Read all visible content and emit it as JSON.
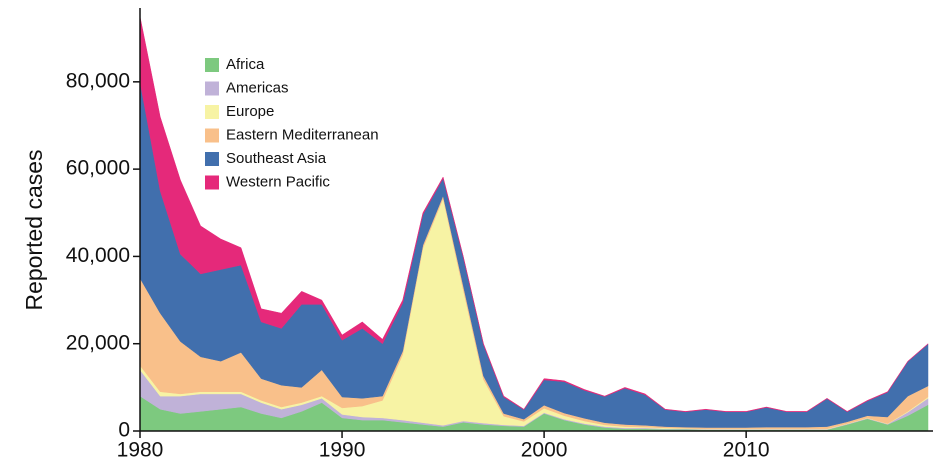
{
  "chart_data": {
    "type": "stacked_area",
    "y_label": "Reported cases",
    "x": [
      1980,
      1981,
      1982,
      1983,
      1984,
      1985,
      1986,
      1987,
      1988,
      1989,
      1990,
      1991,
      1992,
      1993,
      1994,
      1995,
      1996,
      1997,
      1998,
      1999,
      2000,
      2001,
      2002,
      2003,
      2004,
      2005,
      2006,
      2007,
      2008,
      2009,
      2010,
      2011,
      2012,
      2013,
      2014,
      2015,
      2016,
      2017,
      2018,
      2019
    ],
    "xlim": [
      1980,
      2019
    ],
    "xticks": [
      1980,
      1990,
      2000,
      2010
    ],
    "ylim": [
      0,
      96000
    ],
    "yticks": [
      0,
      {
        "value": 20000,
        "label": "20,000"
      },
      {
        "value": 40000,
        "label": "40,000"
      },
      {
        "value": 60000,
        "label": "60,000"
      },
      {
        "value": 80000,
        "label": "80,000"
      }
    ],
    "legend": "upper left",
    "series": [
      {
        "name": "Africa",
        "color": "#7dc97f",
        "values": [
          8000,
          5000,
          4000,
          4500,
          5000,
          5500,
          4000,
          3000,
          4500,
          6500,
          3000,
          2500,
          2500,
          2000,
          1500,
          1000,
          2000,
          1500,
          1200,
          1000,
          4000,
          2500,
          1500,
          800,
          500,
          500,
          400,
          400,
          300,
          300,
          300,
          300,
          300,
          300,
          300,
          1500,
          2800,
          1500,
          3500,
          6000
        ]
      },
      {
        "name": "Americas",
        "color": "#c0b2d8",
        "values": [
          6000,
          3000,
          4000,
          4000,
          3500,
          3000,
          2500,
          2000,
          1500,
          1000,
          800,
          700,
          500,
          500,
          400,
          300,
          300,
          300,
          200,
          200,
          200,
          200,
          200,
          200,
          200,
          200,
          100,
          100,
          100,
          100,
          100,
          100,
          100,
          100,
          100,
          100,
          100,
          100,
          800,
          1500
        ]
      },
      {
        "name": "Europe",
        "color": "#f7f3a4",
        "values": [
          1000,
          1000,
          500,
          500,
          500,
          500,
          500,
          500,
          500,
          500,
          1500,
          2500,
          4000,
          15000,
          40000,
          52000,
          30000,
          10000,
          2000,
          1000,
          1000,
          800,
          600,
          400,
          300,
          200,
          200,
          100,
          100,
          100,
          100,
          100,
          100,
          100,
          100,
          100,
          100,
          100,
          200,
          300
        ]
      },
      {
        "name": "Eastern Mediterranean",
        "color": "#f9c08a",
        "values": [
          20000,
          18000,
          12000,
          8000,
          7000,
          9000,
          5000,
          5000,
          3500,
          6000,
          2500,
          1800,
          1000,
          800,
          700,
          600,
          1000,
          800,
          600,
          500,
          700,
          600,
          600,
          500,
          500,
          400,
          300,
          300,
          300,
          300,
          300,
          400,
          400,
          400,
          500,
          400,
          500,
          1500,
          3500,
          2500
        ]
      },
      {
        "name": "Southeast Asia",
        "color": "#416fad",
        "values": [
          45000,
          28000,
          20000,
          19000,
          21000,
          20000,
          13000,
          13000,
          19000,
          15000,
          13000,
          16000,
          12000,
          11000,
          7000,
          4000,
          6500,
          7200,
          3800,
          2200,
          5800,
          7200,
          6400,
          6000,
          8300,
          7000,
          3900,
          3500,
          4100,
          3600,
          3600,
          4500,
          3500,
          3500,
          6400,
          2300,
          3400,
          5700,
          7900,
          9600
        ]
      },
      {
        "name": "Western Pacific",
        "color": "#e5297a",
        "values": [
          15000,
          17000,
          17000,
          11000,
          7000,
          4000,
          3000,
          3500,
          3000,
          1000,
          1200,
          1500,
          1000,
          700,
          400,
          300,
          200,
          200,
          200,
          100,
          300,
          200,
          200,
          100,
          200,
          200,
          100,
          100,
          100,
          100,
          100,
          100,
          100,
          100,
          100,
          100,
          100,
          100,
          100,
          100
        ]
      }
    ]
  }
}
